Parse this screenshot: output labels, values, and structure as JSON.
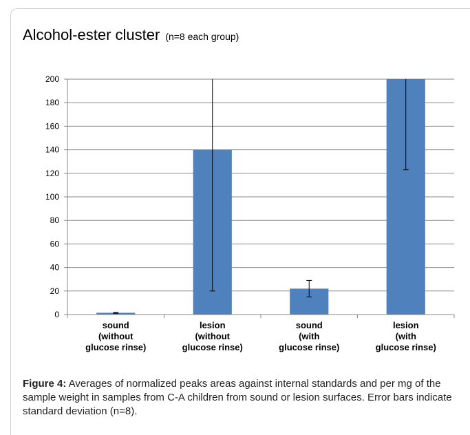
{
  "chart_data": {
    "type": "bar",
    "title": "Alcohol-ester cluster",
    "subtitle": "(n=8 each group)",
    "categories": [
      "sound\n(without\nglucose rinse)",
      "lesion\n(without\nglucose rinse)",
      "sound\n(with\nglucose rinse)",
      "lesion\n(with\nglucose rinse)"
    ],
    "values": [
      1.5,
      140,
      22,
      200
    ],
    "errors": [
      0.5,
      120,
      7,
      77
    ],
    "color": "#4f81bd",
    "ylim": [
      0,
      200
    ],
    "yticks": [
      0,
      20,
      40,
      60,
      80,
      100,
      120,
      140,
      160,
      180,
      200
    ],
    "grid": true
  },
  "caption": {
    "label": "Figure 4:",
    "text": " Averages of normalized peaks areas against internal standards and per mg of the sample weight in samples from C-A children from sound or lesion surfaces. Error bars indicate standard deviation (n=8)."
  }
}
